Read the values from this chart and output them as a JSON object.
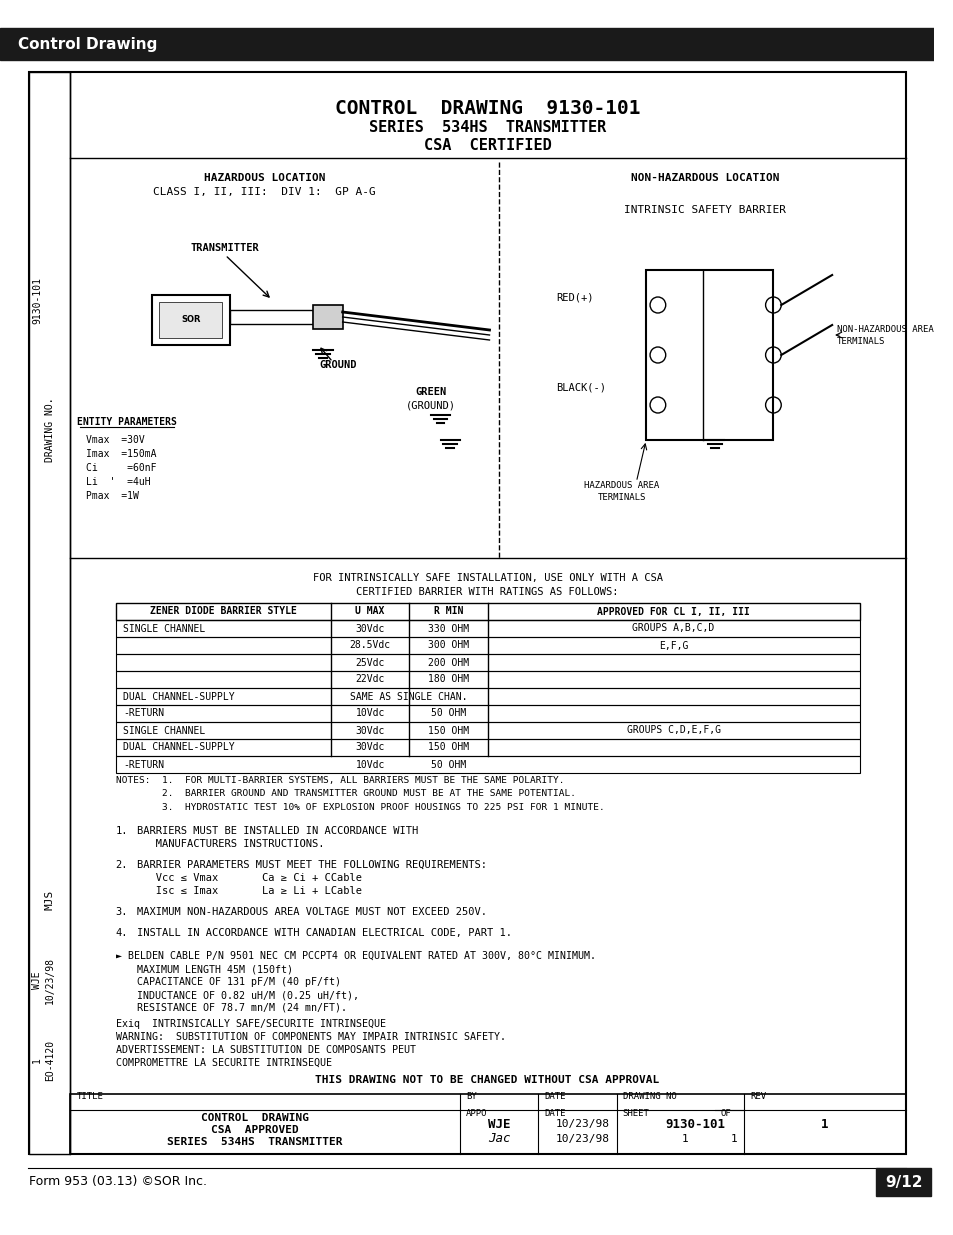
{
  "page_bg": "#ffffff",
  "header_bg": "#1a1a1a",
  "header_text": "Control Drawing",
  "header_text_color": "#ffffff",
  "footer_left": "Form 953 (03.13) ©SOR Inc.",
  "footer_right": "9/12",
  "footer_right_bg": "#1a1a1a",
  "footer_right_color": "#ffffff",
  "title_line1": "CONTROL  DRAWING  9130-101",
  "title_line2": "SERIES  534HS  TRANSMITTER",
  "title_line3": "CSA  CERTIFIED"
}
